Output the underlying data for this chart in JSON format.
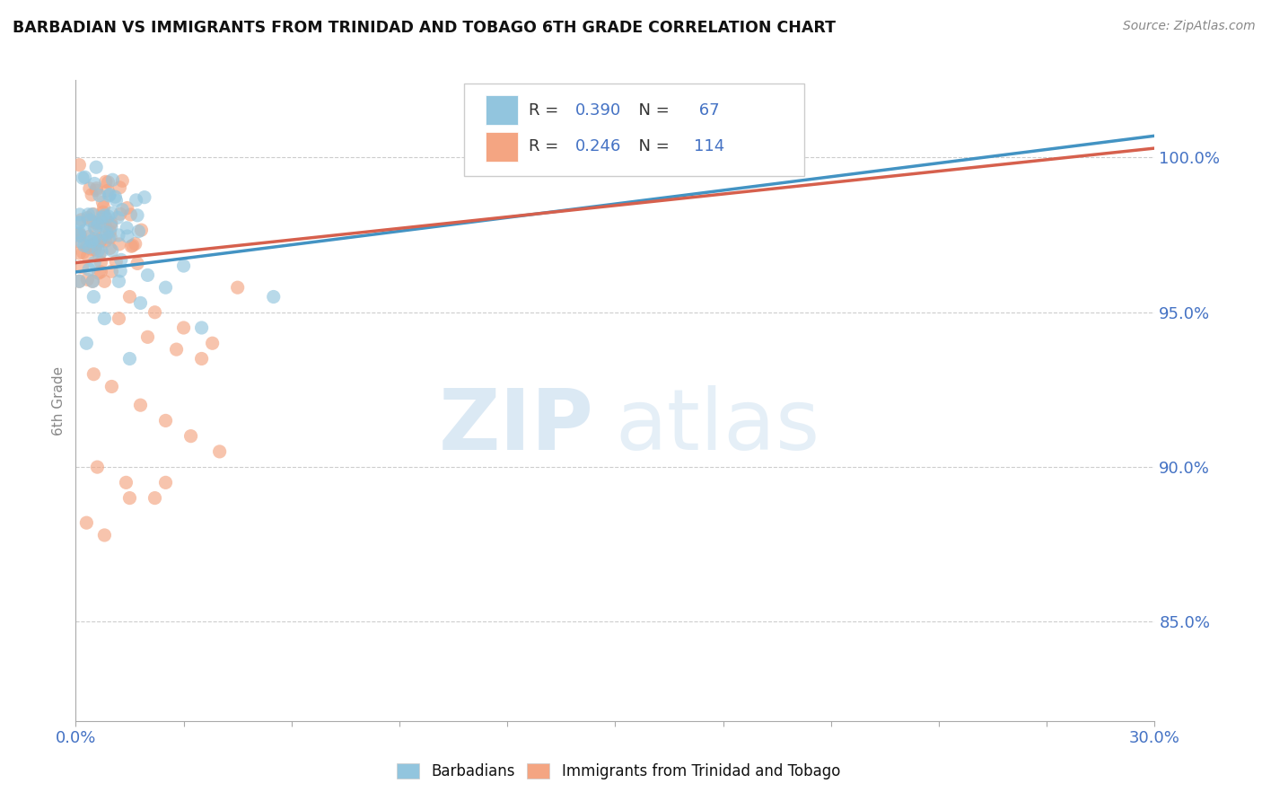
{
  "title": "BARBADIAN VS IMMIGRANTS FROM TRINIDAD AND TOBAGO 6TH GRADE CORRELATION CHART",
  "source": "Source: ZipAtlas.com",
  "ylabel": "6th Grade",
  "y_tick_labels": [
    "85.0%",
    "90.0%",
    "95.0%",
    "100.0%"
  ],
  "y_tick_values": [
    0.85,
    0.9,
    0.95,
    1.0
  ],
  "x_min": 0.0,
  "x_max": 0.3,
  "y_min": 0.818,
  "y_max": 1.025,
  "blue_R": 0.39,
  "blue_N": 67,
  "pink_R": 0.246,
  "pink_N": 114,
  "blue_color": "#92c5de",
  "pink_color": "#f4a582",
  "blue_line_color": "#4393c3",
  "pink_line_color": "#d6604d",
  "blue_trend_x0": 0.0,
  "blue_trend_x1": 0.3,
  "blue_trend_y0": 0.963,
  "blue_trend_y1": 1.007,
  "pink_trend_x0": 0.0,
  "pink_trend_x1": 0.3,
  "pink_trend_y0": 0.966,
  "pink_trend_y1": 1.003,
  "legend_label_blue": "Barbadians",
  "legend_label_pink": "Immigrants from Trinidad and Tobago",
  "watermark_zip": "ZIP",
  "watermark_atlas": "atlas",
  "accent_color": "#4472c4",
  "grid_color": "#c8c8c8"
}
